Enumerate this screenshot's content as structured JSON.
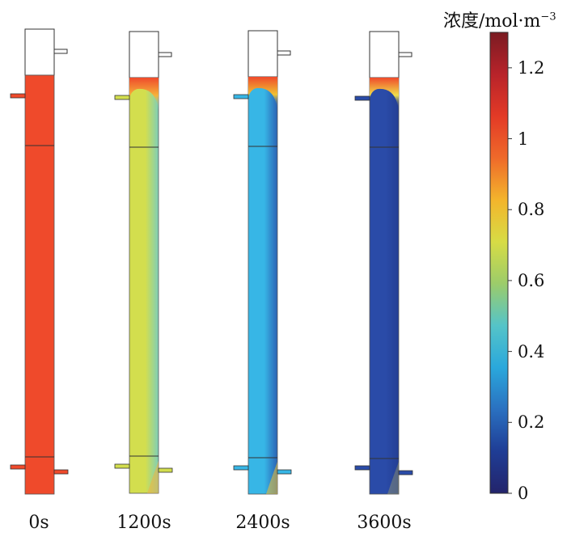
{
  "colorbar": {
    "title_text": "浓度/mol·m",
    "title_exponent": "−3",
    "min": 0,
    "max": 1.3,
    "ticks": [
      {
        "value": 1.2,
        "label": "1.2"
      },
      {
        "value": 1.0,
        "label": "1"
      },
      {
        "value": 0.8,
        "label": "0.8"
      },
      {
        "value": 0.6,
        "label": "0.6"
      },
      {
        "value": 0.4,
        "label": "0.4"
      },
      {
        "value": 0.2,
        "label": "0.2"
      },
      {
        "value": 0.0,
        "label": "0"
      }
    ],
    "colormap": [
      "#23246b",
      "#1f3d95",
      "#2a70c0",
      "#2aa8dc",
      "#55c4c8",
      "#9ccc6a",
      "#d7dc45",
      "#f3b52c",
      "#ef6a2a",
      "#e33a26",
      "#b8232a",
      "#7a1b22"
    ]
  },
  "columns": [
    {
      "time_label": "0s",
      "bulk_color": "#ef4a2b",
      "wall_color": "#ef4a2b",
      "top_color": "#ef4a2b",
      "plume_color": "#ef4a2b",
      "inlet_color": "#ef4a2b"
    },
    {
      "time_label": "1200s",
      "bulk_color": "#d3de4e",
      "wall_color": "#7fcfb8",
      "top_color": "#ef4a2b",
      "plume_color": "#f6b23a",
      "inlet_color": "#d3de4e"
    },
    {
      "time_label": "2400s",
      "bulk_color": "#37b6e6",
      "wall_color": "#2b62b4",
      "top_color": "#ef4a2b",
      "plume_color": "#f1c232",
      "inlet_color": "#37b6e6"
    },
    {
      "time_label": "3600s",
      "bulk_color": "#2a4ba8",
      "wall_color": "#243e94",
      "top_color": "#ef4a2b",
      "plume_color": "#f1e04a",
      "inlet_color": "#2a4ba8"
    }
  ]
}
